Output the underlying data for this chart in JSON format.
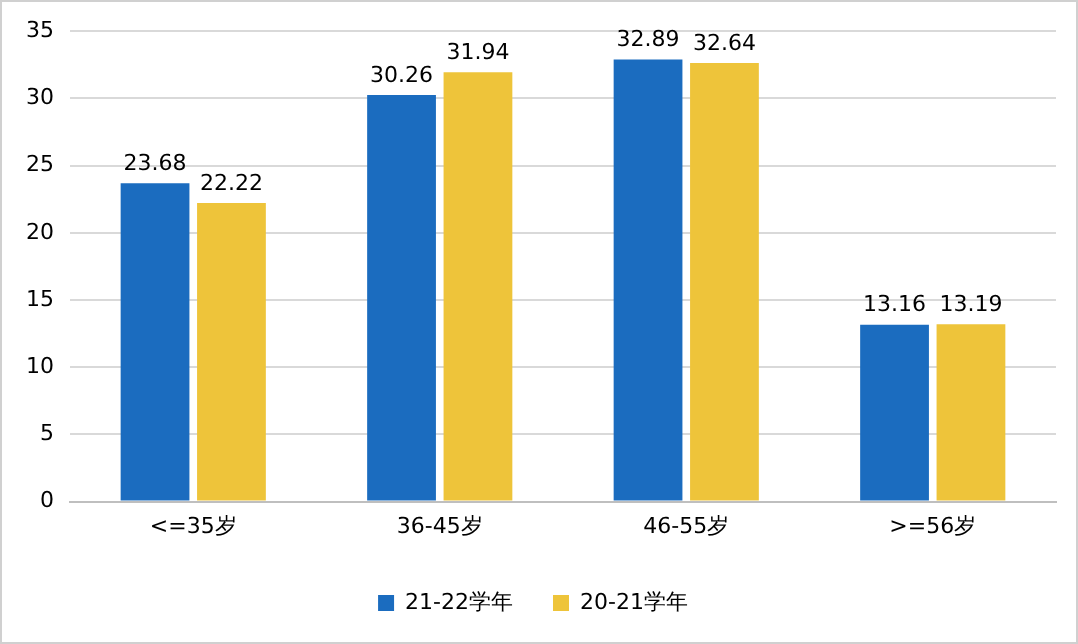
{
  "chart_data": {
    "type": "bar",
    "categories": [
      "<=35岁",
      "36-45岁",
      "46-55岁",
      ">=56岁"
    ],
    "series": [
      {
        "name": "21-22学年",
        "color": "#1b6cbf",
        "values": [
          23.68,
          30.26,
          32.89,
          13.16
        ]
      },
      {
        "name": "20-21学年",
        "color": "#eec43a",
        "values": [
          22.22,
          31.94,
          32.64,
          13.19
        ]
      }
    ],
    "ylim": [
      0,
      35
    ],
    "yticks": [
      0,
      5,
      10,
      15,
      20,
      25,
      30,
      35
    ],
    "grid": "y",
    "legend": "bottom",
    "data_labels": true
  }
}
